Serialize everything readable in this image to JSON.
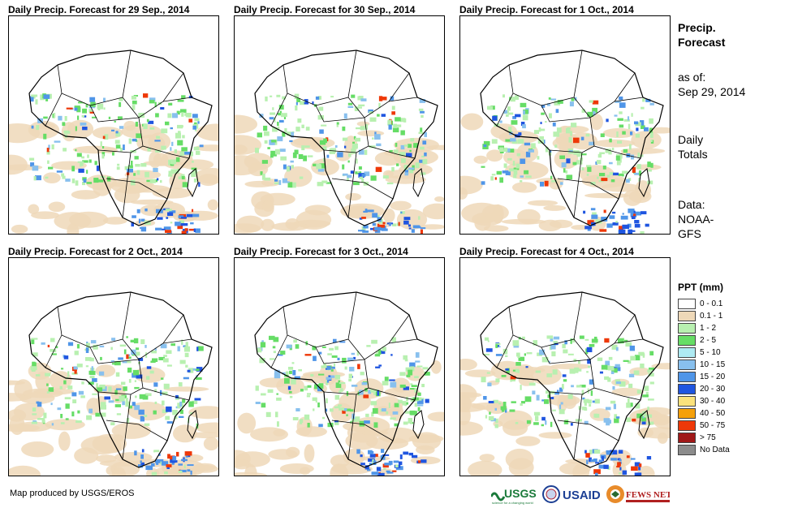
{
  "panels": [
    {
      "title": "Daily Precip. Forecast for 29  Sep., 2014"
    },
    {
      "title": "Daily Precip. Forecast for 30  Sep., 2014"
    },
    {
      "title": "Daily Precip. Forecast for 1 Oct., 2014"
    },
    {
      "title": "Daily Precip. Forecast for 2 Oct., 2014"
    },
    {
      "title": "Daily Precip. Forecast for 3 Oct., 2014"
    },
    {
      "title": "Daily Precip. Forecast for 4 Oct., 2014"
    }
  ],
  "side": {
    "title_line1": "Precip.",
    "title_line2": "Forecast",
    "asof_line1": "as of:",
    "asof_line2": "Sep 29, 2014",
    "totals_line1": "Daily",
    "totals_line2": "Totals",
    "data_line1": "Data:",
    "data_line2": "NOAA-",
    "data_line3": "GFS"
  },
  "legend": {
    "title": "PPT (mm)",
    "items": [
      {
        "label": "0 - 0.1",
        "color": "#ffffff"
      },
      {
        "label": "0.1 - 1",
        "color": "#eed8b8"
      },
      {
        "label": "1 - 2",
        "color": "#b8f0b0"
      },
      {
        "label": "2 - 5",
        "color": "#66dd66"
      },
      {
        "label": "5 - 10",
        "color": "#aeeaf2"
      },
      {
        "label": "10 - 15",
        "color": "#88c0ee"
      },
      {
        "label": "15 - 20",
        "color": "#4f95e8"
      },
      {
        "label": "20 - 30",
        "color": "#1f55e0"
      },
      {
        "label": "30 - 40",
        "color": "#fbe27c"
      },
      {
        "label": "40 - 50",
        "color": "#f5a00a"
      },
      {
        "label": "50 - 75",
        "color": "#ee3808"
      },
      {
        "label": "> 75",
        "color": "#a01818"
      },
      {
        "label": "No Data",
        "color": "#8c8c8c"
      }
    ]
  },
  "credit": "Map produced by USGS/EROS",
  "logos": {
    "usgs": "USGS",
    "usgs_tagline": "science for a changing world",
    "usaid": "USAID",
    "fewsnet": "FEWS NET"
  }
}
